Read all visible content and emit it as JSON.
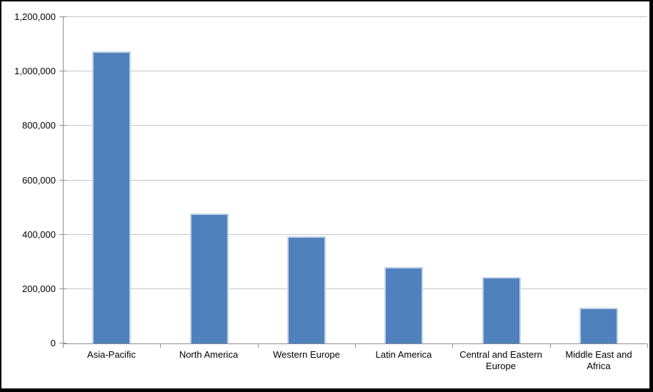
{
  "chart_data": {
    "type": "bar",
    "categories": [
      "Asia-Pacific",
      "North America",
      "Western Europe",
      "Latin America",
      "Central and Eastern Europe",
      "Middle East and Africa"
    ],
    "values": [
      1075000,
      478000,
      394000,
      281000,
      244000,
      131000
    ],
    "title": "",
    "xlabel": "",
    "ylabel": "",
    "ylim": [
      0,
      1200000
    ],
    "y_axis": {
      "min": 0,
      "max": 1200000,
      "tick_interval": 200000,
      "tick_labels": [
        "0",
        "200,000",
        "400,000",
        "600,000",
        "800,000",
        "1,000,000",
        "1,200,000"
      ]
    },
    "grid": true,
    "legend": false,
    "colors": {
      "bar_fill": "#4f81bd",
      "bar_edge": "#c3d2e8",
      "gridline": "#c6c6c6",
      "axis": "#8e8e8e",
      "text": "#000000",
      "background": "#ffffff",
      "frame": "#000000"
    }
  }
}
